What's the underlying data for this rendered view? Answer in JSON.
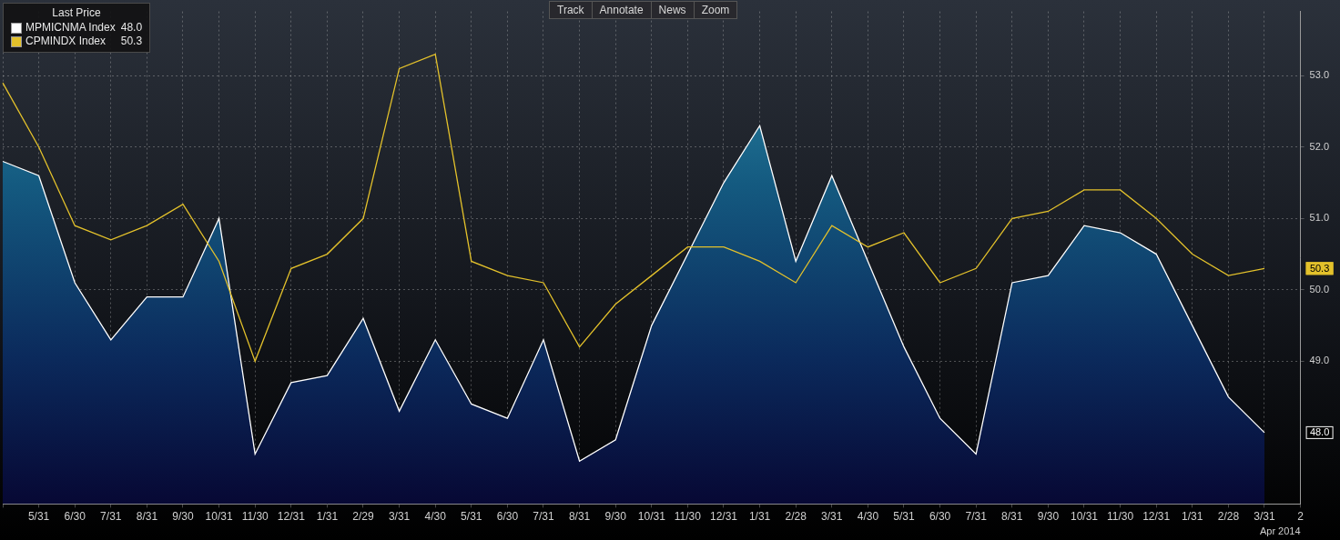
{
  "chart_data": {
    "type": "line",
    "toolbar": [
      "Track",
      "Annotate",
      "News",
      "Zoom"
    ],
    "legend_title": "Last Price",
    "legend": "top-left",
    "grid": true,
    "xlabel": "Apr 2014",
    "categories": [
      null,
      "5/31",
      "6/30",
      "7/31",
      "8/31",
      "9/30",
      "10/31",
      "11/30",
      "12/31",
      "1/31",
      "2/29",
      "3/31",
      "4/30",
      "5/31",
      "6/30",
      "7/31",
      "8/31",
      "9/30",
      "10/31",
      "11/30",
      "12/31",
      "1/31",
      "2/28",
      "3/31",
      "4/30",
      "5/31",
      "6/30",
      "7/31",
      "8/31",
      "9/30",
      "10/31",
      "11/30",
      "12/31",
      "1/31",
      "2/28",
      "3/31",
      "2"
    ],
    "series": [
      {
        "name": "MPMICNMA Index",
        "color": "#ffffff",
        "type": "area",
        "last": {
          "value": 48.0,
          "label": "48.0"
        },
        "values": [
          51.8,
          51.6,
          50.1,
          49.3,
          49.9,
          49.9,
          51.0,
          47.7,
          48.7,
          48.8,
          49.6,
          48.3,
          49.3,
          48.4,
          48.2,
          49.3,
          47.6,
          47.9,
          49.5,
          50.5,
          51.5,
          52.3,
          50.4,
          51.6,
          50.4,
          49.2,
          48.2,
          47.7,
          50.1,
          50.2,
          50.9,
          50.8,
          50.5,
          49.5,
          48.5,
          48.0,
          null
        ]
      },
      {
        "name": "CPMINDX Index",
        "color": "#e3c12b",
        "type": "line",
        "last": {
          "value": 50.3,
          "label": "50.3"
        },
        "values": [
          52.9,
          52.0,
          50.9,
          50.7,
          50.9,
          51.2,
          50.4,
          49.0,
          50.3,
          50.5,
          51.0,
          53.1,
          53.3,
          50.4,
          50.2,
          50.1,
          49.2,
          49.8,
          50.2,
          50.6,
          50.6,
          50.4,
          50.1,
          50.9,
          50.6,
          50.8,
          50.1,
          50.3,
          51.0,
          51.1,
          51.4,
          51.4,
          51.0,
          50.5,
          50.2,
          50.3,
          null
        ]
      }
    ],
    "ylim": [
      47.0,
      53.9
    ],
    "yticks": [
      {
        "value": 49,
        "label": "49.0"
      },
      {
        "value": 50,
        "label": "50.0"
      },
      {
        "value": 51,
        "label": "51.0"
      },
      {
        "value": 52,
        "label": "52.0"
      },
      {
        "value": 53,
        "label": "53.0"
      }
    ]
  }
}
